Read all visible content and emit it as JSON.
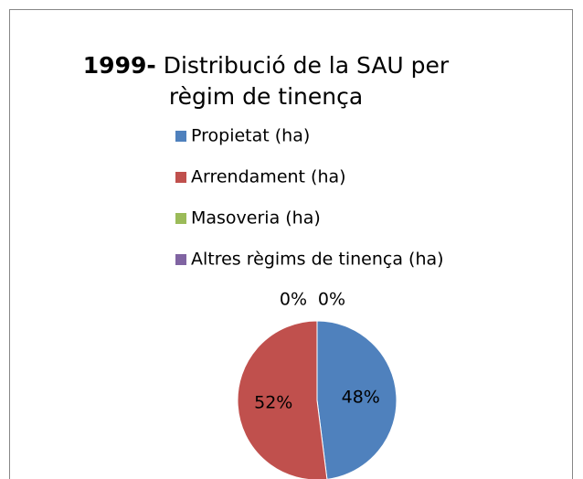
{
  "chart_data": {
    "type": "pie",
    "title": "1999- Distribució de la SAU per règim de tinença",
    "categories": [
      "Propietat (ha)",
      "Arrendament (ha)",
      "Masoveria (ha)",
      "Altres règims de tinença (ha)"
    ],
    "values": [
      48,
      52,
      0,
      0
    ],
    "value_labels": [
      "48%",
      "52%",
      "0%",
      "0%"
    ],
    "colors": [
      "#4f81bd",
      "#c0504d",
      "#9bbb59",
      "#8064a2"
    ],
    "legend": "top"
  }
}
